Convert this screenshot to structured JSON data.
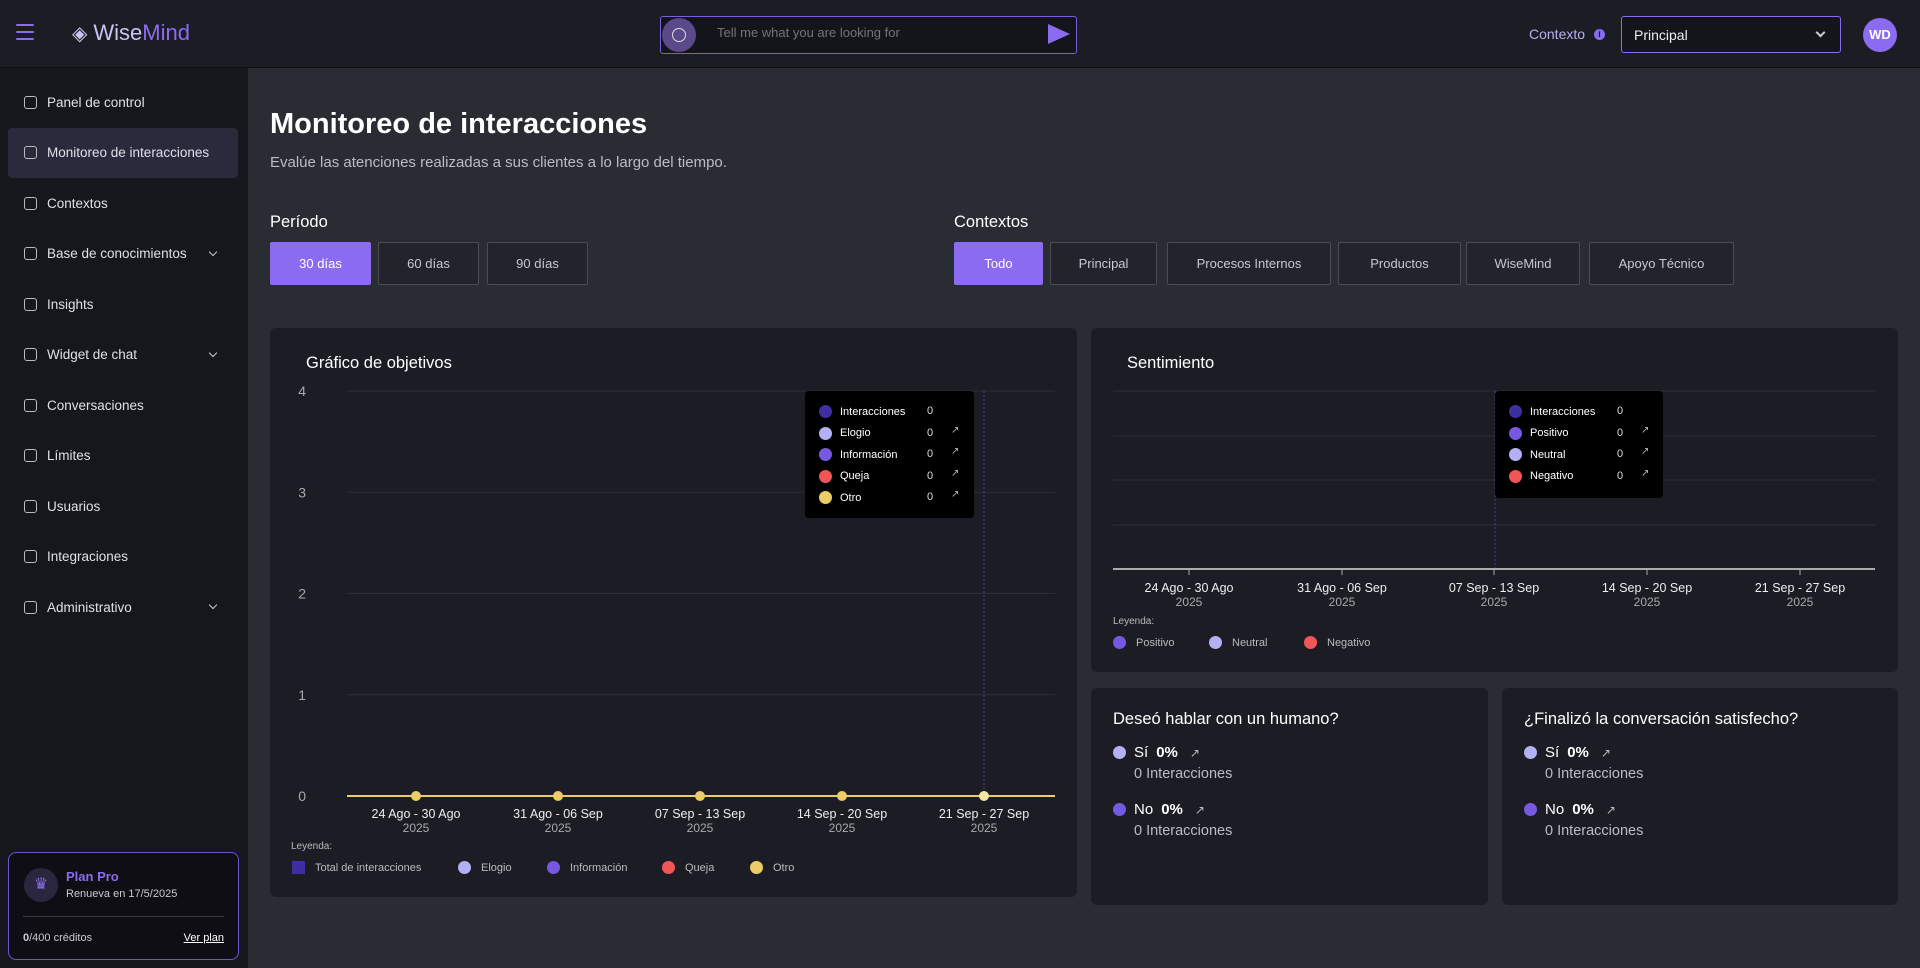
{
  "header": {
    "brand_a": "Wise",
    "brand_b": "Mind",
    "search_placeholder": "Tell me what you are looking for",
    "context_label": "Contexto",
    "context_value": "Principal",
    "avatar": "WD"
  },
  "sidebar": {
    "items": [
      {
        "label": "Panel de control"
      },
      {
        "label": "Monitoreo de interacciones",
        "active": true
      },
      {
        "label": "Contextos"
      },
      {
        "label": "Base de conocimientos",
        "expand": true
      },
      {
        "label": "Insights"
      },
      {
        "label": "Widget de chat",
        "expand": true
      },
      {
        "label": "Conversaciones"
      },
      {
        "label": "Límites"
      },
      {
        "label": "Usuarios"
      },
      {
        "label": "Integraciones"
      },
      {
        "label": "Administrativo",
        "expand": true
      }
    ],
    "plan": {
      "name": "Plan Pro",
      "renew": "Renueva en 17/5/2025",
      "used": "0",
      "total": "/400 créditos",
      "link": "Ver plan"
    }
  },
  "page": {
    "title": "Monitoreo de interacciones",
    "subtitle": "Evalúe las atenciones realizadas a sus clientes a lo largo del tiempo.",
    "period_label": "Período",
    "periods": [
      "30 días",
      "60 días",
      "90 días"
    ],
    "contexts_label": "Contextos",
    "contexts": [
      "Todo",
      "Principal",
      "Procesos Internos",
      "Productos",
      "WiseMind",
      "Apoyo Técnico"
    ]
  },
  "colors": {
    "accent": "#8b6cf0",
    "interacciones": "#3d2fa0",
    "elogio": "#b4b0f5",
    "informacion": "#7659e0",
    "queja": "#f05656",
    "otro": "#eccc68",
    "positivo": "#7659e0",
    "neutral": "#b4b0f5",
    "negativo": "#f05656"
  },
  "chart_data": [
    {
      "type": "line",
      "title": "Gráfico de objetivos",
      "categories": [
        "24 Ago - 30 Ago",
        "31 Ago - 06 Sep",
        "07 Sep - 13 Sep",
        "14 Sep - 20 Sep",
        "21 Sep - 27 Sep"
      ],
      "year": "2025",
      "yticks": [
        "0",
        "1",
        "2",
        "3",
        "4"
      ],
      "ylim": [
        0,
        4
      ],
      "series": [
        {
          "name": "Interacciones",
          "values": [
            0,
            0,
            0,
            0,
            0
          ]
        },
        {
          "name": "Elogio",
          "values": [
            0,
            0,
            0,
            0,
            0
          ]
        },
        {
          "name": "Información",
          "values": [
            0,
            0,
            0,
            0,
            0
          ]
        },
        {
          "name": "Queja",
          "values": [
            0,
            0,
            0,
            0,
            0
          ]
        },
        {
          "name": "Otro",
          "values": [
            0,
            0,
            0,
            0,
            0
          ]
        }
      ],
      "tooltip": [
        {
          "name": "Interacciones",
          "value": "0"
        },
        {
          "name": "Elogio",
          "value": "0"
        },
        {
          "name": "Información",
          "value": "0"
        },
        {
          "name": "Queja",
          "value": "0"
        },
        {
          "name": "Otro",
          "value": "0"
        }
      ],
      "legend_title": "Leyenda:",
      "legend": [
        "Total de interacciones",
        "Elogio",
        "Información",
        "Queja",
        "Otro"
      ]
    },
    {
      "type": "bar",
      "title": "Sentimiento",
      "categories": [
        "24 Ago - 30 Ago",
        "31 Ago - 06 Sep",
        "07 Sep - 13 Sep",
        "14 Sep - 20 Sep",
        "21 Sep - 27 Sep"
      ],
      "year": "2025",
      "series": [
        {
          "name": "Positivo",
          "values": [
            0,
            0,
            0,
            0,
            0
          ]
        },
        {
          "name": "Neutral",
          "values": [
            0,
            0,
            0,
            0,
            0
          ]
        },
        {
          "name": "Negativo",
          "values": [
            0,
            0,
            0,
            0,
            0
          ]
        }
      ],
      "tooltip": [
        {
          "name": "Interacciones",
          "value": "0"
        },
        {
          "name": "Positivo",
          "value": "0"
        },
        {
          "name": "Neutral",
          "value": "0"
        },
        {
          "name": "Negativo",
          "value": "0"
        }
      ],
      "legend_title": "Leyenda:",
      "legend": [
        "Positivo",
        "Neutral",
        "Negativo"
      ]
    }
  ],
  "human": {
    "title": "Deseó hablar con un humano?",
    "yes": "Sí",
    "yes_pct": "0%",
    "yes_count": "0 Interacciones",
    "no": "No",
    "no_pct": "0%",
    "no_count": "0 Interacciones"
  },
  "satisfied": {
    "title": "¿Finalizó la conversación satisfecho?",
    "yes": "Sí",
    "yes_pct": "0%",
    "yes_count": "0 Interacciones",
    "no": "No",
    "no_pct": "0%",
    "no_count": "0 Interacciones"
  }
}
